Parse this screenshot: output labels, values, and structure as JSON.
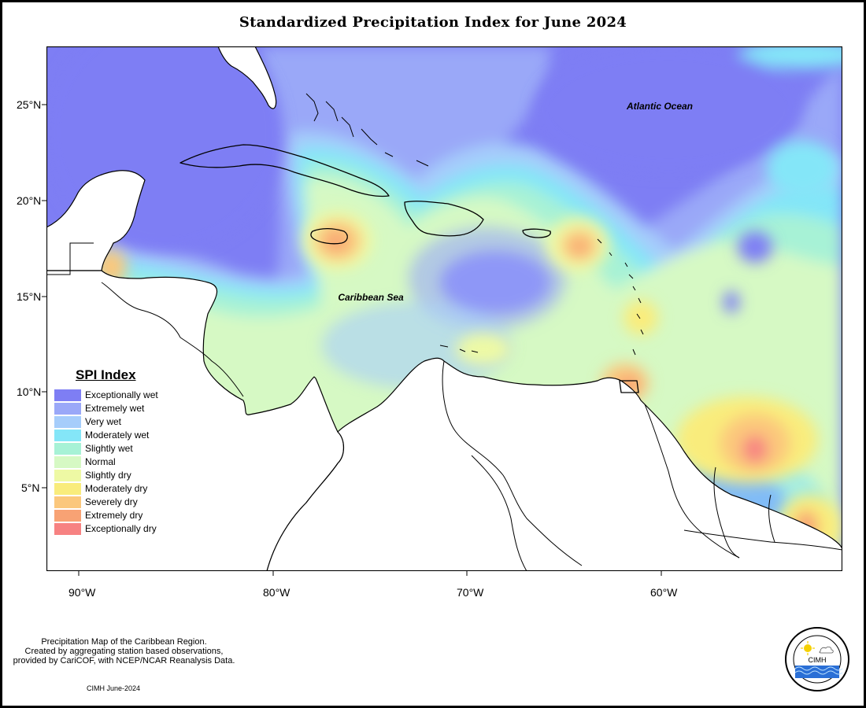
{
  "title": "Standardized Precipitation Index for June 2024",
  "map_labels": {
    "ocean": "Atlantic Ocean",
    "sea": "Caribbean Sea"
  },
  "axes": {
    "y_ticks": [
      "25°N",
      "20°N",
      "15°N",
      "10°N",
      "5°N"
    ],
    "x_ticks": [
      "90°W",
      "80°W",
      "70°W",
      "60°W"
    ]
  },
  "legend": {
    "title": "SPI Index",
    "items": [
      {
        "label": "Exceptionally wet",
        "color": "#7e7ef4"
      },
      {
        "label": "Extremely wet",
        "color": "#9aa8f8"
      },
      {
        "label": "Very wet",
        "color": "#a6cdfb"
      },
      {
        "label": "Moderately wet",
        "color": "#84e6f8"
      },
      {
        "label": "Slightly wet",
        "color": "#a7f2d6"
      },
      {
        "label": "Normal",
        "color": "#d6f9c4"
      },
      {
        "label": "Slightly dry",
        "color": "#eef9a4"
      },
      {
        "label": "Moderately dry",
        "color": "#f9ec7c"
      },
      {
        "label": "Severely dry",
        "color": "#fbc77c"
      },
      {
        "label": "Extremely dry",
        "color": "#f8a274"
      },
      {
        "label": "Exceptionally dry",
        "color": "#f78282"
      }
    ]
  },
  "caption": {
    "line1": "Precipitation Map of the Caribbean Region.",
    "line2": "Created by aggregating station based observations,",
    "line3": "provided by CariCOF, with NCEP/NCAR Reanalysis Data."
  },
  "credit": "CIMH June-2024",
  "logo": {
    "text": "CIMH",
    "ring_text": "Caribbean Institute for Meteorology and Hydrology"
  }
}
